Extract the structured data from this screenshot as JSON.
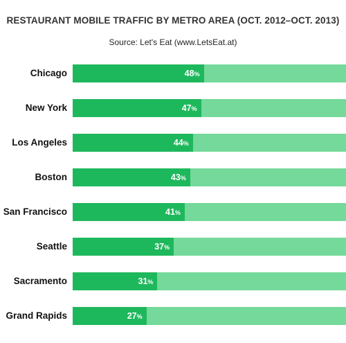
{
  "chart_data": {
    "type": "bar",
    "orientation": "horizontal",
    "title": "RESTAURANT MOBILE TRAFFIC BY METRO AREA (OCT. 2012–OCT. 2013)",
    "subtitle": "Source: Let's Eat (www.LetsEat.at)",
    "categories": [
      "Chicago",
      "New York",
      "Los Angeles",
      "Boston",
      "San Francisco",
      "Seattle",
      "Sacramento",
      "Grand Rapids"
    ],
    "values": [
      48,
      47,
      44,
      43,
      41,
      37,
      31,
      27
    ],
    "value_labels": [
      "48",
      "47",
      "44",
      "43",
      "41",
      "37",
      "31",
      "27"
    ],
    "unit": "%",
    "xlim": [
      0,
      100
    ],
    "grid": false,
    "legend": "none",
    "colors": {
      "fill": "#1eb85c",
      "background": "#74d99a"
    }
  }
}
